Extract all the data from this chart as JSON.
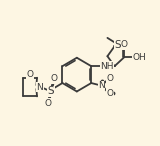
{
  "bg_color": "#fdf6e3",
  "line_color": "#3a3a3a",
  "lw": 1.3,
  "fs": 6.5,
  "fs_small": 5.5,
  "xlim": [
    0,
    10
  ],
  "ylim": [
    0,
    9
  ]
}
